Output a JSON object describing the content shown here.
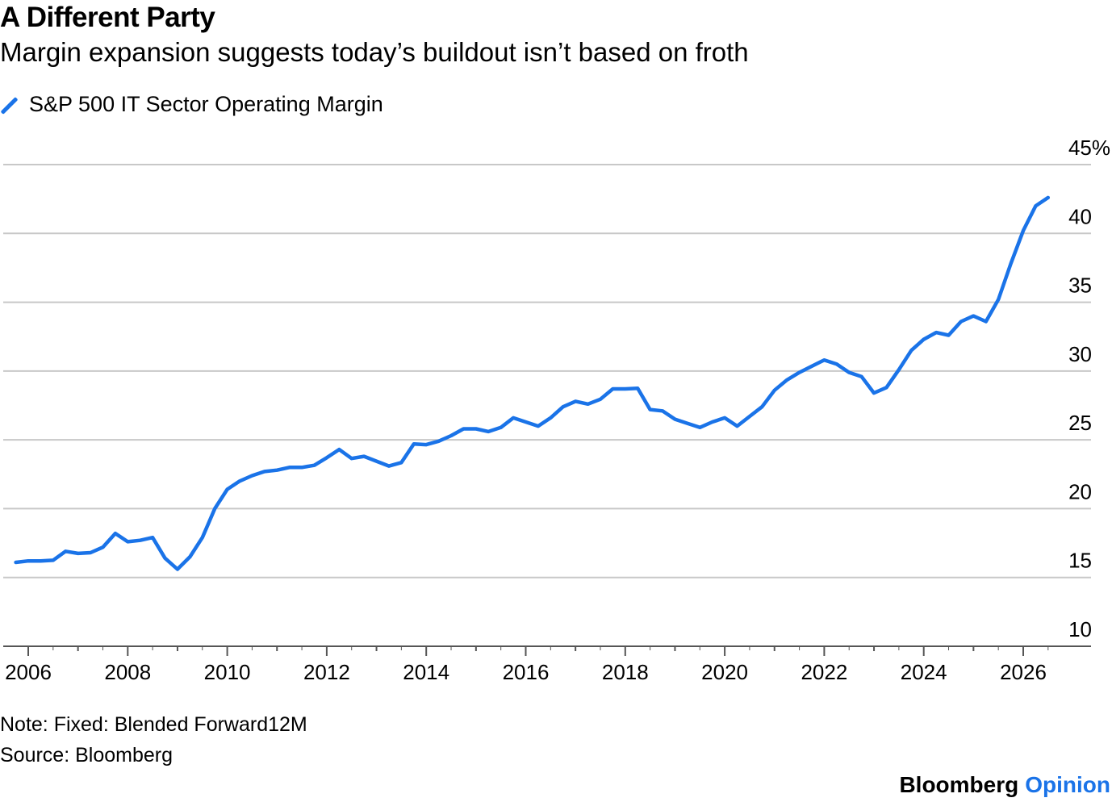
{
  "header": {
    "title": "A Different Party",
    "subtitle": "Margin expansion suggests today’s buildout isn’t based on froth"
  },
  "footer": {
    "note": "Note: Fixed: Blended Forward12M",
    "source": "Source: Bloomberg",
    "brand": "Bloomberg",
    "brand_suffix": "Opinion"
  },
  "colors": {
    "series": "#1a73e8",
    "grid": "#c8c8c8",
    "axis": "#555555"
  },
  "chart_data": {
    "type": "line",
    "y_unit_suffix": "%",
    "ylim": [
      10,
      45
    ],
    "y_ticks": [
      10,
      15,
      20,
      25,
      30,
      35,
      40,
      45
    ],
    "x_tick_labels": [
      "2006",
      "2008",
      "2010",
      "2012",
      "2014",
      "2016",
      "2018",
      "2020",
      "2022",
      "2024",
      "2026"
    ],
    "xlim": [
      2005.75,
      2026.9
    ],
    "grid": true,
    "legend_position": "top-left",
    "series": [
      {
        "name": "S&P 500 IT Sector Operating Margin",
        "x": [
          2005.75,
          2006.0,
          2006.25,
          2006.5,
          2006.75,
          2007.0,
          2007.25,
          2007.5,
          2007.75,
          2008.0,
          2008.25,
          2008.5,
          2008.75,
          2009.0,
          2009.25,
          2009.5,
          2009.75,
          2010.0,
          2010.25,
          2010.5,
          2010.75,
          2011.0,
          2011.25,
          2011.5,
          2011.75,
          2012.0,
          2012.25,
          2012.5,
          2012.75,
          2013.0,
          2013.25,
          2013.5,
          2013.75,
          2014.0,
          2014.25,
          2014.5,
          2014.75,
          2015.0,
          2015.25,
          2015.5,
          2015.75,
          2016.0,
          2016.25,
          2016.5,
          2016.75,
          2017.0,
          2017.25,
          2017.5,
          2017.75,
          2018.0,
          2018.25,
          2018.5,
          2018.75,
          2019.0,
          2019.25,
          2019.5,
          2019.75,
          2020.0,
          2020.25,
          2020.5,
          2020.75,
          2021.0,
          2021.25,
          2021.5,
          2021.75,
          2022.0,
          2022.25,
          2022.5,
          2022.75,
          2023.0,
          2023.25,
          2023.5,
          2023.75,
          2024.0,
          2024.25,
          2024.5,
          2024.75,
          2025.0,
          2025.25,
          2025.5,
          2025.75,
          2026.0,
          2026.25,
          2026.5
        ],
        "values": [
          16.1,
          16.2,
          16.2,
          16.25,
          16.9,
          16.75,
          16.8,
          17.2,
          18.2,
          17.6,
          17.7,
          17.9,
          16.4,
          15.6,
          16.5,
          17.9,
          20.0,
          21.4,
          22.0,
          22.4,
          22.7,
          22.8,
          23.0,
          23.0,
          23.15,
          23.7,
          24.3,
          23.65,
          23.8,
          23.45,
          23.1,
          23.35,
          24.7,
          24.65,
          24.9,
          25.3,
          25.8,
          25.8,
          25.6,
          25.9,
          26.6,
          26.3,
          26.0,
          26.6,
          27.4,
          27.8,
          27.6,
          27.95,
          28.7,
          28.7,
          28.75,
          27.2,
          27.1,
          26.5,
          26.2,
          25.9,
          26.3,
          26.6,
          26.0,
          26.7,
          27.4,
          28.6,
          29.35,
          29.9,
          30.35,
          30.8,
          30.5,
          29.9,
          29.6,
          28.4,
          28.8,
          30.1,
          31.5,
          32.3,
          32.8,
          32.6,
          33.6,
          34.0,
          33.6,
          35.2,
          37.8,
          40.2,
          42.0,
          42.6
        ]
      }
    ]
  }
}
